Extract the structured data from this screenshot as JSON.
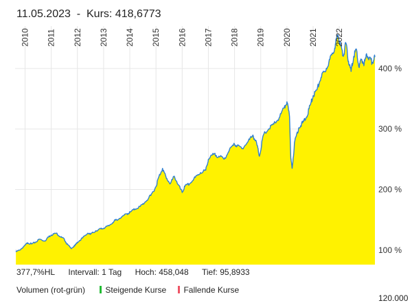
{
  "header": {
    "date": "11.05.2023",
    "separator": "-",
    "kurs_label": "Kurs:",
    "kurs_value": "418,6773"
  },
  "stats": {
    "hl": "377,7%HL",
    "interval": "Intervall: 1 Tag",
    "hoch": "Hoch:  458,048",
    "tief": "Tief: 95,8933"
  },
  "volume": {
    "label": "Volumen (rot-grün)",
    "rising": "Steigende Kurse",
    "falling": "Fallende Kurse",
    "rising_color": "#22bb33",
    "falling_color": "#ee5566",
    "next_axis_tick": "120.000"
  },
  "chart_data": {
    "type": "area",
    "fill_color": "#fff200",
    "line_color": "#2f7fd0",
    "grid": true,
    "ylabel": "",
    "ylim": [
      76,
      470
    ],
    "xlim": [
      2009.62,
      2023.36
    ],
    "y_ticks": [
      {
        "value": 100,
        "label": "100 %"
      },
      {
        "value": 200,
        "label": "200 %"
      },
      {
        "value": 300,
        "label": "300 %"
      },
      {
        "value": 400,
        "label": "400 %"
      }
    ],
    "x_ticks": [
      {
        "value": 2010,
        "label": "2010"
      },
      {
        "value": 2011,
        "label": "2011"
      },
      {
        "value": 2012,
        "label": "2012"
      },
      {
        "value": 2013,
        "label": "2013"
      },
      {
        "value": 2014,
        "label": "2014"
      },
      {
        "value": 2015,
        "label": "2015"
      },
      {
        "value": 2016,
        "label": "2016"
      },
      {
        "value": 2017,
        "label": "2017"
      },
      {
        "value": 2018,
        "label": "2018"
      },
      {
        "value": 2019,
        "label": "2019"
      },
      {
        "value": 2020,
        "label": "2020"
      },
      {
        "value": 2021,
        "label": "2021"
      },
      {
        "value": 2022,
        "label": "2022"
      }
    ],
    "x": [
      2009.65,
      2009.8,
      2010.0,
      2010.1,
      2010.25,
      2010.4,
      2010.55,
      2010.75,
      2010.9,
      2011.0,
      2011.2,
      2011.35,
      2011.5,
      2011.6,
      2011.75,
      2011.9,
      2012.0,
      2012.2,
      2012.4,
      2012.5,
      2012.7,
      2012.9,
      2013.0,
      2013.2,
      2013.4,
      2013.5,
      2013.7,
      2013.9,
      2014.0,
      2014.2,
      2014.4,
      2014.6,
      2014.8,
      2015.0,
      2015.1,
      2015.25,
      2015.4,
      2015.55,
      2015.7,
      2015.85,
      2016.0,
      2016.1,
      2016.3,
      2016.5,
      2016.7,
      2016.9,
      2017.0,
      2017.2,
      2017.4,
      2017.6,
      2017.8,
      2018.0,
      2018.1,
      2018.3,
      2018.5,
      2018.7,
      2018.85,
      2018.95,
      2019.1,
      2019.3,
      2019.5,
      2019.7,
      2019.9,
      2020.0,
      2020.1,
      2020.15,
      2020.2,
      2020.3,
      2020.45,
      2020.6,
      2020.75,
      2020.9,
      2021.0,
      2021.15,
      2021.3,
      2021.45,
      2021.6,
      2021.75,
      2021.85,
      2021.95,
      2022.05,
      2022.15,
      2022.25,
      2022.35,
      2022.45,
      2022.55,
      2022.65,
      2022.75,
      2022.85,
      2022.95,
      2023.05,
      2023.15,
      2023.25,
      2023.36
    ],
    "y": [
      97,
      100,
      108,
      112,
      110,
      113,
      118,
      115,
      122,
      125,
      128,
      122,
      118,
      110,
      103,
      107,
      113,
      120,
      128,
      126,
      132,
      135,
      136,
      140,
      148,
      150,
      155,
      160,
      162,
      168,
      172,
      180,
      190,
      205,
      220,
      235,
      218,
      210,
      222,
      208,
      195,
      205,
      210,
      220,
      228,
      232,
      250,
      258,
      255,
      250,
      265,
      275,
      272,
      268,
      278,
      290,
      275,
      255,
      290,
      300,
      308,
      318,
      335,
      345,
      320,
      250,
      235,
      280,
      302,
      310,
      320,
      340,
      355,
      365,
      385,
      395,
      410,
      425,
      440,
      455,
      438,
      420,
      442,
      412,
      395,
      420,
      432,
      402,
      415,
      408,
      422,
      418,
      410,
      418.7
    ]
  }
}
